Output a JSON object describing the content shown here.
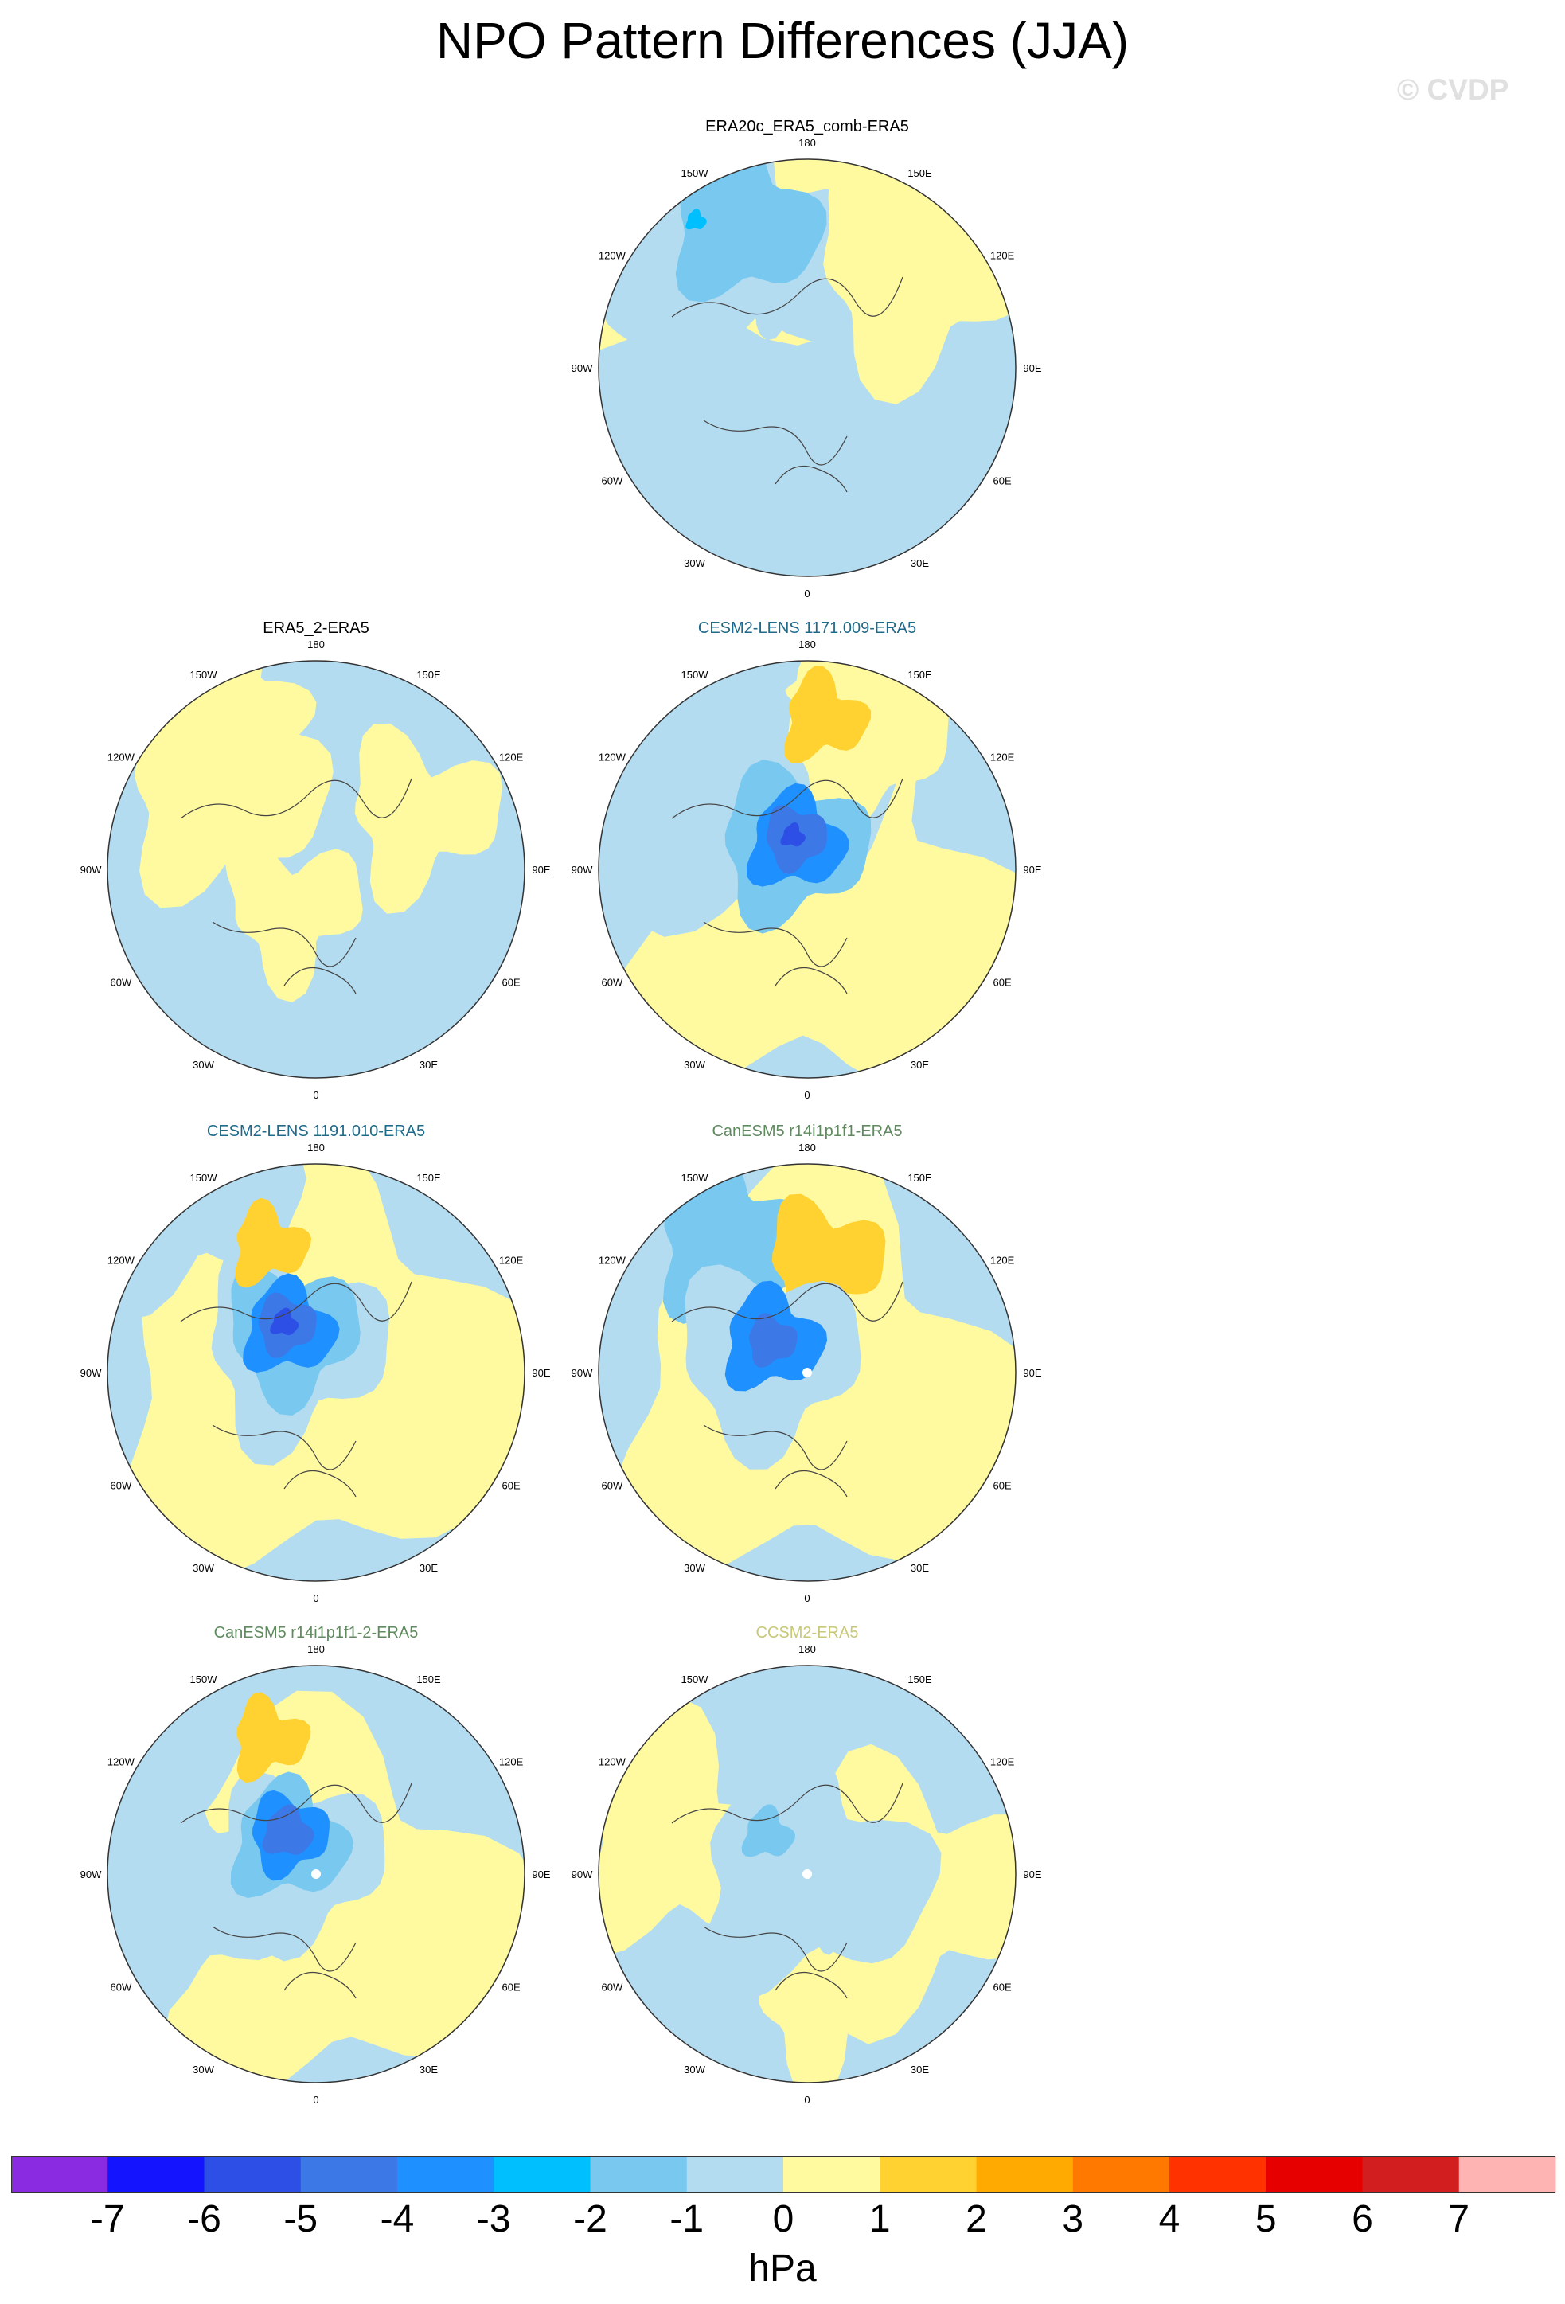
{
  "title": "NPO Pattern Differences (JJA)",
  "watermark": "© CVDP",
  "longitude_labels": [
    "180",
    "150E",
    "120E",
    "90E",
    "60E",
    "30E",
    "0",
    "30W",
    "60W",
    "90W",
    "120W",
    "150W"
  ],
  "panels": [
    {
      "id": "p1",
      "title": "ERA20c_ERA5_comb-ERA5",
      "title_color": "#000000",
      "max_negative_hpa": -3
    },
    {
      "id": "p2",
      "title": "ERA5_2-ERA5",
      "title_color": "#000000",
      "max_negative_hpa": -1
    },
    {
      "id": "p3",
      "title": "CESM2-LENS 1171.009-ERA5",
      "title_color": "#1f6a8a",
      "max_negative_hpa": -5
    },
    {
      "id": "p4",
      "title": "CESM2-LENS 1191.010-ERA5",
      "title_color": "#1f6a8a",
      "max_negative_hpa": -5
    },
    {
      "id": "p5",
      "title": "CanESM5 r14i1p1f1-ERA5",
      "title_color": "#5e8a5e",
      "max_negative_hpa": -4
    },
    {
      "id": "p6",
      "title": "CanESM5 r14i1p1f1-2-ERA5",
      "title_color": "#5e8a5e",
      "max_negative_hpa": -5
    },
    {
      "id": "p7",
      "title": "CCSM2-ERA5",
      "title_color": "#c8c878",
      "max_negative_hpa": -2
    }
  ],
  "colorbar": {
    "units": "hPa",
    "labels": [
      "-7",
      "-6",
      "-5",
      "-4",
      "-3",
      "-2",
      "-1",
      "0",
      "1",
      "2",
      "3",
      "4",
      "5",
      "6",
      "7"
    ],
    "colors": [
      "#8a2be2",
      "#1414ff",
      "#2d4fe6",
      "#3c78e6",
      "#1e90ff",
      "#00bfff",
      "#78c8f0",
      "#b4dcf0",
      "#fffaa0",
      "#ffd232",
      "#ffaa00",
      "#ff7800",
      "#ff3200",
      "#e60000",
      "#d21e1e",
      "#ffb4b4"
    ]
  }
}
